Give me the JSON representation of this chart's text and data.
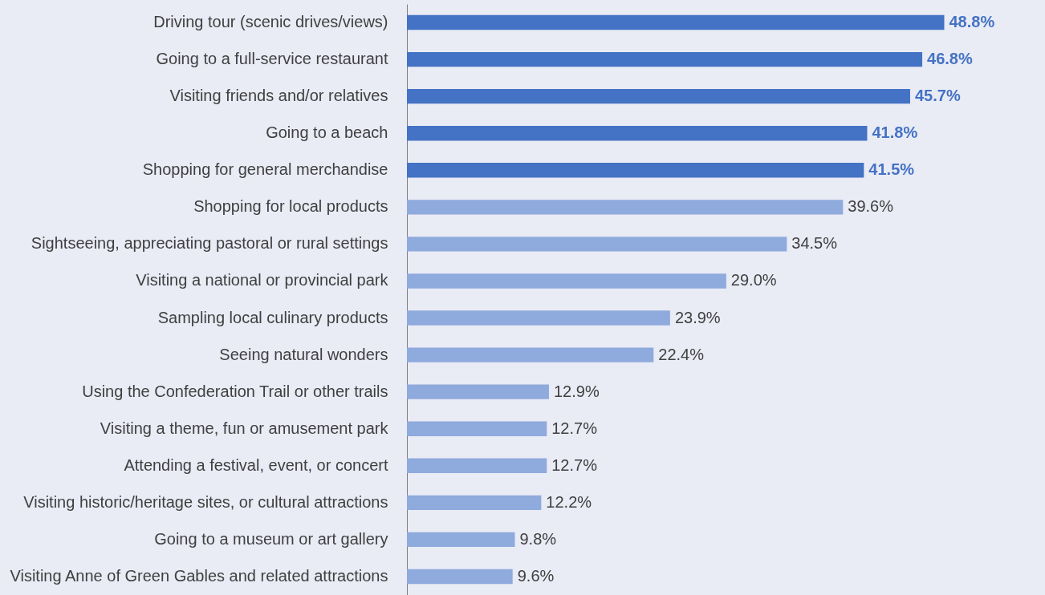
{
  "chart_data": {
    "type": "bar",
    "orientation": "horizontal",
    "categories": [
      "Driving tour (scenic drives/views)",
      "Going to a full-service restaurant",
      "Visiting friends and/or relatives",
      "Going to a beach",
      "Shopping for general merchandise",
      "Shopping for local products ",
      "Sightseeing, appreciating pastoral or rural settings",
      "Visiting a national or provincial park",
      "Sampling local culinary products",
      "Seeing natural wonders",
      "Using the Confederation Trail or other trails ",
      "Visiting a theme, fun or amusement park",
      "Attending a festival, event, or concert",
      "Visiting historic/heritage sites, or cultural attractions",
      "Going to a museum or art gallery",
      "Visiting Anne of Green Gables and related attractions"
    ],
    "values": [
      48.8,
      46.8,
      45.7,
      41.8,
      41.5,
      39.6,
      34.5,
      29.0,
      23.9,
      22.4,
      12.9,
      12.7,
      12.7,
      12.2,
      9.8,
      9.6
    ],
    "colors": [
      "#4472c4",
      "#4472c4",
      "#4472c4",
      "#4472c4",
      "#4472c4",
      "#8faadc",
      "#8faadc",
      "#8faadc",
      "#8faadc",
      "#8faadc",
      "#8faadc",
      "#8faadc",
      "#8faadc",
      "#8faadc",
      "#8faadc",
      "#8faadc"
    ],
    "value_labels": [
      "48.8%",
      "46.8%",
      "45.7%",
      "41.8%",
      "41.5%",
      "39.6%",
      "34.5%",
      "29.0%",
      "23.9%",
      "22.4%",
      "12.9%",
      "12.7%",
      "12.7%",
      "12.2%",
      "9.8%",
      "9.6%"
    ],
    "grid": false
  }
}
